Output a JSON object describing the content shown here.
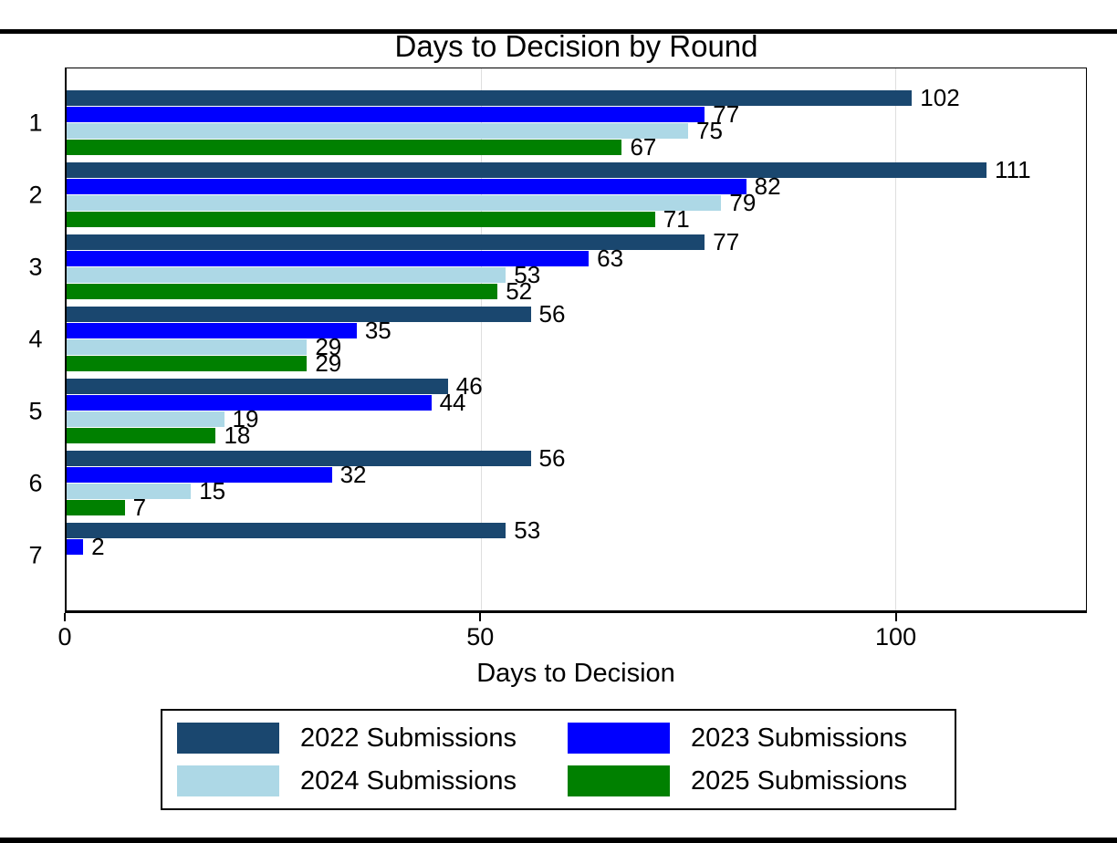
{
  "page": {
    "background": "#ffffff",
    "top_rule_color": "#000000",
    "bottom_rule_color": "#000000"
  },
  "chart_data": {
    "type": "bar",
    "orientation": "horizontal",
    "title": "Days to Decision by Round",
    "xlabel": "Days to Decision",
    "ylabel": "",
    "categories": [
      "1",
      "2",
      "3",
      "4",
      "5",
      "6",
      "7"
    ],
    "series": [
      {
        "name": "2022 Submissions",
        "color": "#1a476f",
        "values": [
          102,
          111,
          77,
          56,
          46,
          56,
          53
        ]
      },
      {
        "name": "2023 Submissions",
        "color": "#0000ff",
        "values": [
          77,
          82,
          63,
          35,
          44,
          32,
          2
        ]
      },
      {
        "name": "2024 Submissions",
        "color": "#add8e6",
        "values": [
          75,
          79,
          53,
          29,
          19,
          15,
          null
        ]
      },
      {
        "name": "2025 Submissions",
        "color": "#008000",
        "values": [
          67,
          71,
          52,
          29,
          18,
          7,
          null
        ]
      }
    ],
    "xlim": [
      0,
      123
    ],
    "xticks": [
      0,
      50,
      100
    ],
    "gridlines_x": [
      50,
      100
    ],
    "grid_color": "#dedede",
    "bar_labels": true,
    "grid": true,
    "legend_position": "bottom"
  }
}
